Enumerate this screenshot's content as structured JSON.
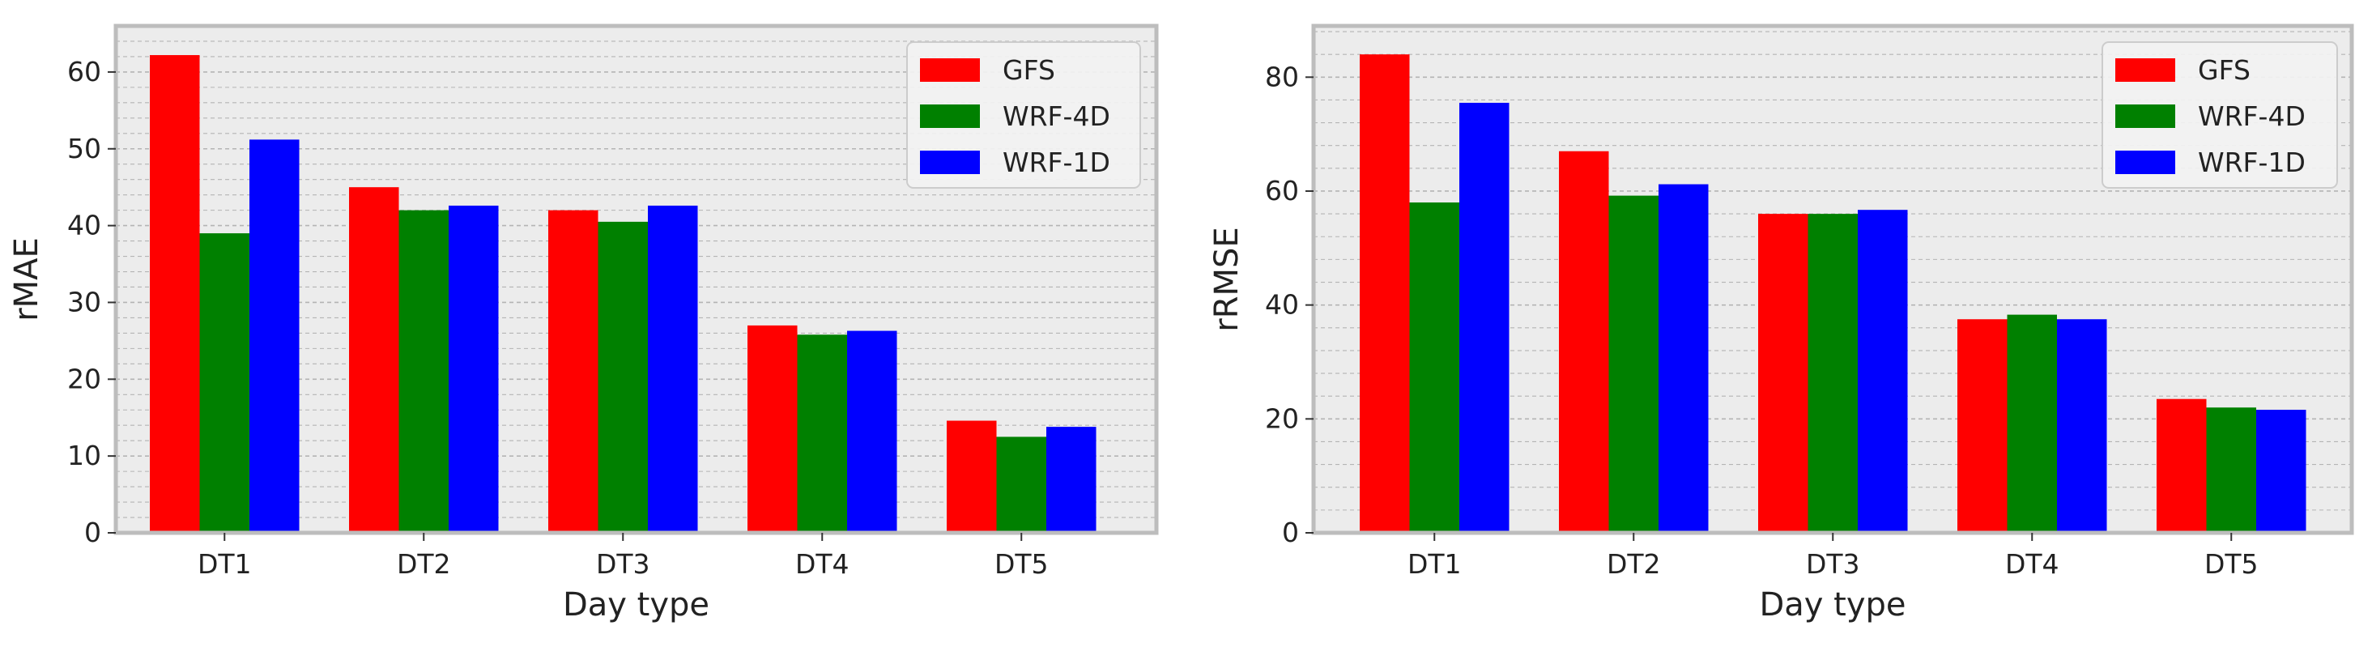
{
  "colors": {
    "plot_background": "#ececec",
    "frame": "#bdbdbd",
    "grid": "#b4b4b4",
    "GFS": "#ff0000",
    "WRF-4D": "#008000",
    "WRF-1D": "#0000ff"
  },
  "chart_data": [
    {
      "type": "bar",
      "title": "",
      "xlabel": "Day type",
      "ylabel": "rMAE",
      "ylim": [
        0,
        66
      ],
      "yticks": [
        0,
        10,
        20,
        30,
        40,
        50,
        60
      ],
      "grid": true,
      "legend_position": "top-right",
      "categories": [
        "DT1",
        "DT2",
        "DT3",
        "DT4",
        "DT5"
      ],
      "series": [
        {
          "name": "GFS",
          "values": [
            62.2,
            45.0,
            42.0,
            27.0,
            14.6
          ]
        },
        {
          "name": "WRF-4D",
          "values": [
            39.0,
            42.0,
            40.5,
            25.8,
            12.5
          ]
        },
        {
          "name": "WRF-1D",
          "values": [
            51.2,
            42.6,
            42.6,
            26.3,
            13.8
          ]
        }
      ]
    },
    {
      "type": "bar",
      "title": "",
      "xlabel": "Day type",
      "ylabel": "rRMSE",
      "ylim": [
        0,
        89
      ],
      "yticks": [
        0,
        20,
        40,
        60,
        80
      ],
      "grid": true,
      "legend_position": "top-right",
      "categories": [
        "DT1",
        "DT2",
        "DT3",
        "DT4",
        "DT5"
      ],
      "series": [
        {
          "name": "GFS",
          "values": [
            84.0,
            67.0,
            56.0,
            37.5,
            23.5
          ]
        },
        {
          "name": "WRF-4D",
          "values": [
            58.0,
            59.2,
            56.0,
            38.3,
            22.0
          ]
        },
        {
          "name": "WRF-1D",
          "values": [
            75.5,
            61.2,
            56.7,
            37.5,
            21.6
          ]
        }
      ]
    }
  ]
}
